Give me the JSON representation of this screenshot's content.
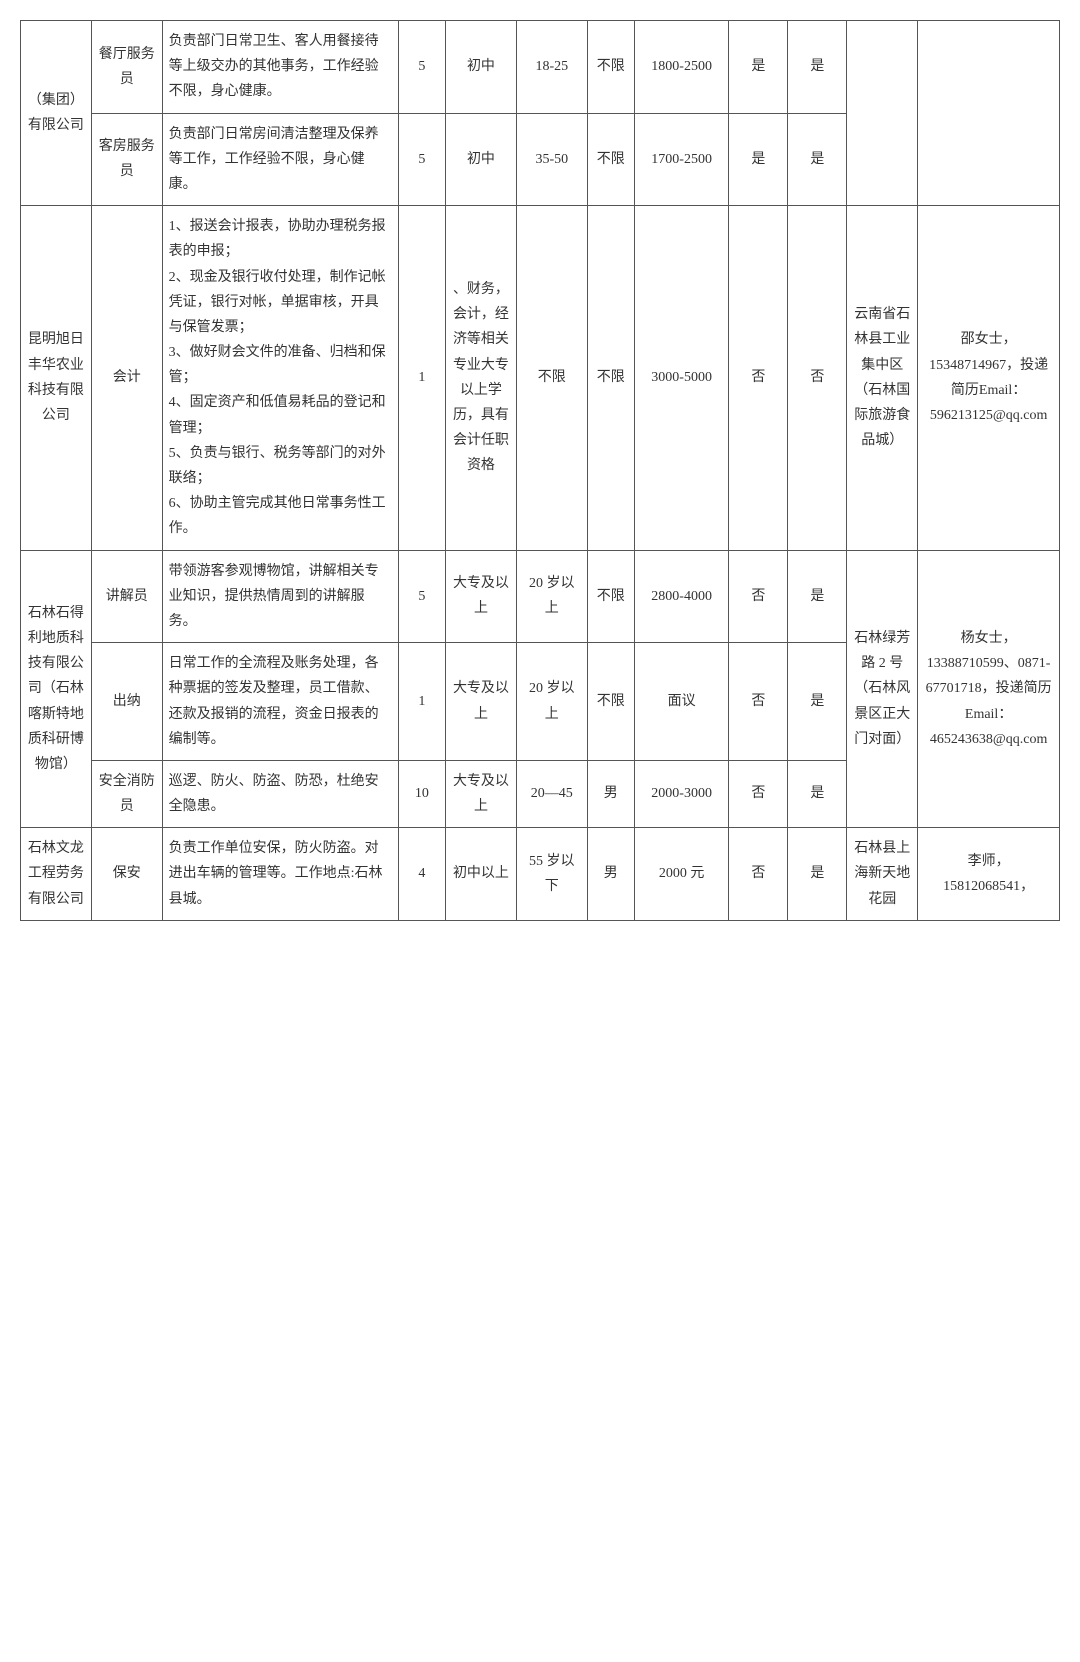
{
  "table": {
    "rows": [
      {
        "company": "（集团）有限公司",
        "company_rowspan": 2,
        "position": "餐厅服务员",
        "desc": "负责部门日常卫生、客人用餐接待等上级交办的其他事务，工作经验不限，身心健康。",
        "count": "5",
        "edu": "初中",
        "age": "18-25",
        "gender": "不限",
        "salary": "1800-2500",
        "yn1": "是",
        "yn2": "是",
        "addr": "",
        "addr_rowspan": 2,
        "contact": "",
        "contact_rowspan": 2
      },
      {
        "position": "客房服务员",
        "desc": "负责部门日常房间清洁整理及保养等工作，工作经验不限，身心健康。",
        "count": "5",
        "edu": "初中",
        "age": "35-50",
        "gender": "不限",
        "salary": "1700-2500",
        "yn1": "是",
        "yn2": "是"
      },
      {
        "company": "昆明旭日丰华农业科技有限公司",
        "company_rowspan": 1,
        "position": "会计",
        "desc": "1、报送会计报表，协助办理税务报表的申报；\n2、现金及银行收付处理，制作记帐凭证，银行对帐，单据审核，开具与保管发票；\n3、做好财会文件的准备、归档和保管；\n4、固定资产和低值易耗品的登记和管理；\n5、负责与银行、税务等部门的对外联络；\n6、协助主管完成其他日常事务性工作。",
        "count": "1",
        "edu": "、财务，会计，经济等相关专业大专以上学历，具有会计任职资格",
        "age": "不限",
        "gender": "不限",
        "salary": "3000-5000",
        "yn1": "否",
        "yn2": "否",
        "addr": "云南省石林县工业集中区（石林国际旅游食品城）",
        "addr_rowspan": 1,
        "contact": "邵女士，15348714967，投递简历Email：596213125@qq.com",
        "contact_rowspan": 1
      },
      {
        "company": "石林石得利地质科技有限公司（石林喀斯特地质科研博物馆）",
        "company_rowspan": 3,
        "position": "讲解员",
        "desc": "带领游客参观博物馆，讲解相关专业知识，提供热情周到的讲解服务。",
        "count": "5",
        "edu": "大专及以上",
        "age": "20 岁以上",
        "gender": "不限",
        "salary": "2800-4000",
        "yn1": "否",
        "yn2": "是",
        "addr": "石林绿芳路 2 号（石林风景区正大门对面）",
        "addr_rowspan": 3,
        "contact": "杨女士，13388710599、0871-67701718，投递简历Email：465243638@qq.com",
        "contact_rowspan": 3
      },
      {
        "position": "出纳",
        "desc": "日常工作的全流程及账务处理，各种票据的签发及整理，员工借款、还款及报销的流程，资金日报表的编制等。",
        "count": "1",
        "edu": "大专及以上",
        "age": "20 岁以上",
        "gender": "不限",
        "salary": "面议",
        "yn1": "否",
        "yn2": "是"
      },
      {
        "position": "安全消防员",
        "desc": "巡逻、防火、防盗、防恐，杜绝安全隐患。",
        "count": "10",
        "edu": "大专及以上",
        "age": "20—45",
        "gender": "男",
        "salary": "2000-3000",
        "yn1": "否",
        "yn2": "是"
      },
      {
        "company": "石林文龙工程劳务有限公司",
        "company_rowspan": 1,
        "position": "保安",
        "desc": "负责工作单位安保，防火防盗。对进出车辆的管理等。工作地点:石林县城。",
        "count": "4",
        "edu": "初中以上",
        "age": "55 岁以下",
        "gender": "男",
        "salary": "2000 元",
        "yn1": "否",
        "yn2": "是",
        "addr": "石林县上海新天地花园",
        "addr_rowspan": 1,
        "contact": "李师，15812068541，",
        "contact_rowspan": 1
      }
    ]
  }
}
